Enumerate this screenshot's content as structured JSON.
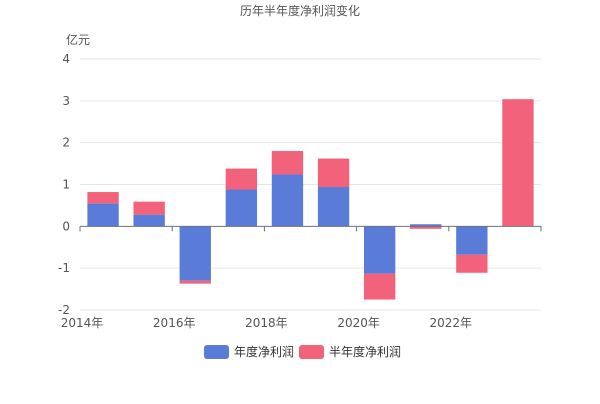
{
  "chart_data": {
    "type": "bar",
    "stacked": true,
    "title": "历年半年度净利润变化",
    "unit_label": "亿元",
    "ylim": [
      -2,
      4
    ],
    "y_ticks": [
      "4",
      "3",
      "2",
      "1",
      "0",
      "-1",
      "-2"
    ],
    "x_tick_labels": [
      "2014年",
      "2016年",
      "2018年",
      "2020年",
      "2022年"
    ],
    "categories": [
      "2014年",
      "2015年",
      "2016年",
      "2017年",
      "2018年",
      "2019年",
      "2020年",
      "2021年",
      "2022年",
      "2023年"
    ],
    "grid": true,
    "legend_position": "bottom",
    "series": [
      {
        "name": "年度净利润",
        "color": "#5b7bd9",
        "values": [
          0.55,
          0.28,
          -1.3,
          0.88,
          1.24,
          0.94,
          -1.13,
          0.05,
          -0.68,
          null
        ]
      },
      {
        "name": "半年度净利润",
        "color": "#f2637b",
        "values": [
          0.27,
          0.31,
          -0.07,
          0.5,
          0.56,
          0.68,
          -0.62,
          -0.06,
          -0.43,
          3.04
        ]
      }
    ]
  }
}
